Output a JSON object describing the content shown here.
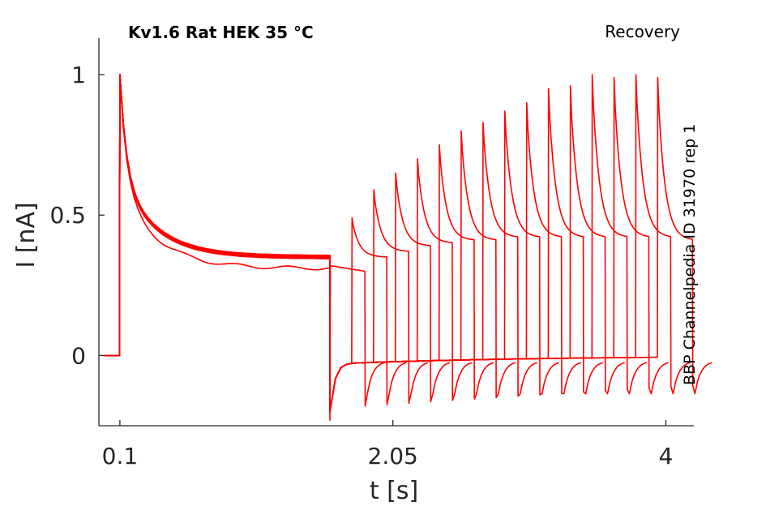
{
  "chart_data": {
    "type": "line",
    "title": "Kv1.6  Rat  HEK  35 °C",
    "protocol": "Recovery",
    "source": "BBP Channelpedia ID 31970 rep 1",
    "xlabel": "t [s]",
    "ylabel": "I [nA]",
    "xlim": [
      -0.05,
      4.2
    ],
    "ylim": [
      -0.25,
      1.13
    ],
    "xticks": [
      {
        "value": 0.1,
        "label": "0.1"
      },
      {
        "value": 2.05,
        "label": "2.05"
      },
      {
        "value": 4.0,
        "label": "4"
      }
    ],
    "yticks": [
      {
        "value": 0,
        "label": "0"
      },
      {
        "value": 0.5,
        "label": "0.5"
      },
      {
        "value": 1,
        "label": "1"
      }
    ],
    "grid": false,
    "color": "#ff0000",
    "protocol_timing": {
      "baseline_start": -0.01,
      "prepulse_start": 0.1,
      "prepulse_end": 1.6,
      "test_pulse_width": 0.25,
      "trace_count": 16
    },
    "series": [
      {
        "recovery_interval": 0.0,
        "baseline_level": 0.35,
        "test_peak": 0.32,
        "test_end": 0.3
      },
      {
        "recovery_interval": 0.156,
        "baseline_level": 0.35,
        "test_peak": 0.49,
        "test_end": 0.35
      },
      {
        "recovery_interval": 0.312,
        "baseline_level": 0.35,
        "test_peak": 0.59,
        "test_end": 0.37
      },
      {
        "recovery_interval": 0.468,
        "baseline_level": 0.35,
        "test_peak": 0.65,
        "test_end": 0.39
      },
      {
        "recovery_interval": 0.624,
        "baseline_level": 0.35,
        "test_peak": 0.7,
        "test_end": 0.4
      },
      {
        "recovery_interval": 0.78,
        "baseline_level": 0.35,
        "test_peak": 0.75,
        "test_end": 0.41
      },
      {
        "recovery_interval": 0.936,
        "baseline_level": 0.35,
        "test_peak": 0.8,
        "test_end": 0.41
      },
      {
        "recovery_interval": 1.092,
        "baseline_level": 0.35,
        "test_peak": 0.83,
        "test_end": 0.42
      },
      {
        "recovery_interval": 1.248,
        "baseline_level": 0.35,
        "test_peak": 0.87,
        "test_end": 0.42
      },
      {
        "recovery_interval": 1.404,
        "baseline_level": 0.35,
        "test_peak": 0.9,
        "test_end": 0.42
      },
      {
        "recovery_interval": 1.56,
        "baseline_level": 0.35,
        "test_peak": 0.95,
        "test_end": 0.42
      },
      {
        "recovery_interval": 1.716,
        "baseline_level": 0.35,
        "test_peak": 0.96,
        "test_end": 0.42
      },
      {
        "recovery_interval": 1.872,
        "baseline_level": 0.35,
        "test_peak": 1.0,
        "test_end": 0.42
      },
      {
        "recovery_interval": 2.028,
        "baseline_level": 0.35,
        "test_peak": 0.99,
        "test_end": 0.42
      },
      {
        "recovery_interval": 2.184,
        "baseline_level": 0.35,
        "test_peak": 1.0,
        "test_end": 0.42
      },
      {
        "recovery_interval": 2.34,
        "baseline_level": 0.35,
        "test_peak": 0.99,
        "test_end": 0.41
      }
    ]
  }
}
